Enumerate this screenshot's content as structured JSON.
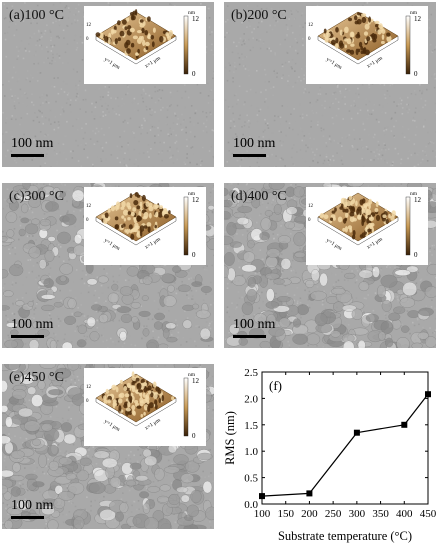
{
  "panels": [
    {
      "id": "a",
      "label": "(a)100 °C",
      "scale": "100 nm",
      "afm": {
        "unit": "nm",
        "max": "12",
        "min": "0",
        "y_axis": "y=1 μm",
        "x_axis": "x=1 μm"
      }
    },
    {
      "id": "b",
      "label": "(b)200 °C",
      "scale": "100 nm",
      "afm": {
        "unit": "nm",
        "max": "12",
        "min": "0",
        "y_axis": "y=1 μm",
        "x_axis": "x=1 μm"
      }
    },
    {
      "id": "c",
      "label": "(c)300 °C",
      "scale": "100 nm",
      "afm": {
        "unit": "nm",
        "max": "12",
        "min": "0",
        "y_axis": "y=1 μm",
        "x_axis": "x=1 μm"
      }
    },
    {
      "id": "d",
      "label": "(d)400 °C",
      "scale": "100 nm",
      "afm": {
        "unit": "nm",
        "max": "12",
        "min": "0",
        "y_axis": "y=1 μm",
        "x_axis": "x=1 μm"
      }
    },
    {
      "id": "e",
      "label": "(e)450 °C",
      "scale": "100 nm",
      "afm": {
        "unit": "nm",
        "max": "12",
        "min": "0",
        "y_axis": "y=1 μm",
        "x_axis": "x=1 μm"
      }
    }
  ],
  "chart_data": {
    "type": "line",
    "panel_label": "(f)",
    "x": [
      100,
      200,
      300,
      400,
      450
    ],
    "series": [
      {
        "values": [
          0.15,
          0.2,
          1.35,
          1.5,
          2.08
        ]
      }
    ],
    "xlabel": "Substrate temperature (°C)",
    "ylabel": "RMS (nm)",
    "xlim": [
      100,
      450
    ],
    "ylim": [
      0,
      2.5
    ],
    "xticks": [
      "100",
      "150",
      "200",
      "250",
      "300",
      "350",
      "400",
      "450"
    ],
    "yticks": [
      "0.0",
      "0.5",
      "1.0",
      "1.5",
      "2.0",
      "2.5"
    ],
    "marker": "square",
    "grid": false
  },
  "colors": {
    "sem_base": "#a9a9a9",
    "afm_high": "#e8c898",
    "afm_low": "#3a2108",
    "line": "#000000"
  }
}
